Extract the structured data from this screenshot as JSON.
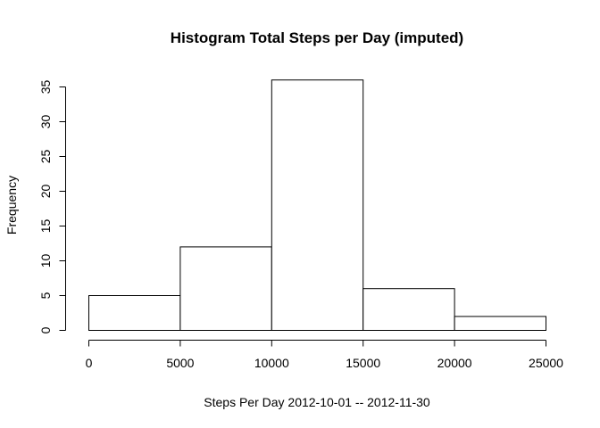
{
  "chart_data": {
    "type": "bar",
    "title": "Histogram Total Steps per Day (imputed)",
    "xlabel": "Steps Per Day 2012-10-01 -- 2012-11-30",
    "ylabel": "Frequency",
    "bins": [
      {
        "start": 0,
        "end": 5000,
        "value": 5
      },
      {
        "start": 5000,
        "end": 10000,
        "value": 12
      },
      {
        "start": 10000,
        "end": 15000,
        "value": 36
      },
      {
        "start": 15000,
        "end": 20000,
        "value": 6
      },
      {
        "start": 20000,
        "end": 25000,
        "value": 2
      }
    ],
    "xlim": [
      0,
      25000
    ],
    "ylim": [
      0,
      35
    ],
    "xticks": [
      0,
      5000,
      10000,
      15000,
      20000,
      25000
    ],
    "yticks": [
      0,
      5,
      10,
      15,
      20,
      25,
      30,
      35
    ],
    "xtick_labels": [
      "0",
      "5000",
      "10000",
      "15000",
      "20000",
      "25000"
    ],
    "ytick_labels": [
      "0",
      "5",
      "10",
      "15",
      "20",
      "25",
      "30",
      "35"
    ],
    "grid": false,
    "colors": {
      "bar_fill": "#ffffff",
      "bar_stroke": "#000000"
    }
  }
}
